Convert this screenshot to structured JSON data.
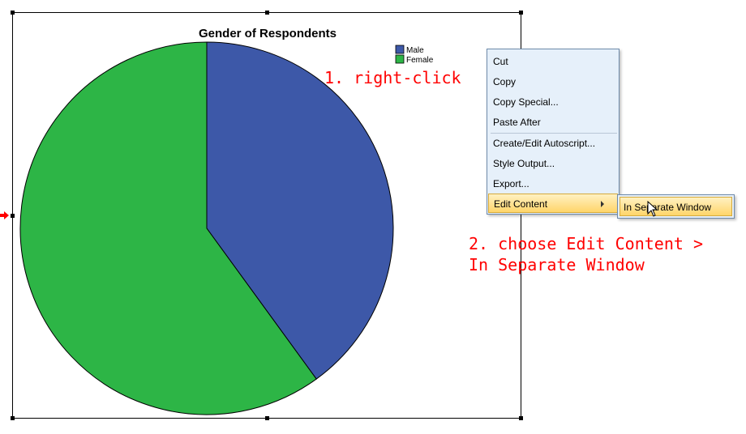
{
  "chart": {
    "title": "Gender of Respondents",
    "legend": [
      {
        "label": "Male",
        "color": "#3d58a8"
      },
      {
        "label": "Female",
        "color": "#2db546"
      }
    ]
  },
  "chart_data": {
    "type": "pie",
    "title": "Gender of Respondents",
    "categories": [
      "Male",
      "Female"
    ],
    "values": [
      40,
      60
    ],
    "colors": [
      "#3d58a8",
      "#2db546"
    ],
    "legend_position": "top-right"
  },
  "context_menu": {
    "items": [
      {
        "label": "Cut"
      },
      {
        "label": "Copy"
      },
      {
        "label": "Copy Special..."
      },
      {
        "label": "Paste After"
      },
      {
        "label": "Create/Edit Autoscript..."
      },
      {
        "label": "Style Output..."
      },
      {
        "label": "Export..."
      },
      {
        "label": "Edit Content"
      }
    ],
    "submenu": {
      "label": "In Separate Window"
    }
  },
  "annotations": {
    "step1": "1. right-click",
    "step2_line1": "2. choose Edit Content >",
    "step2_line2": "In Separate Window"
  },
  "colors": {
    "annotation": "#ff0000",
    "highlight": "#ffd56a"
  },
  "icons": {
    "cursor": "mouse-pointer-icon",
    "selection": "red-arrow-icon",
    "submenu": "submenu-arrow-icon"
  }
}
